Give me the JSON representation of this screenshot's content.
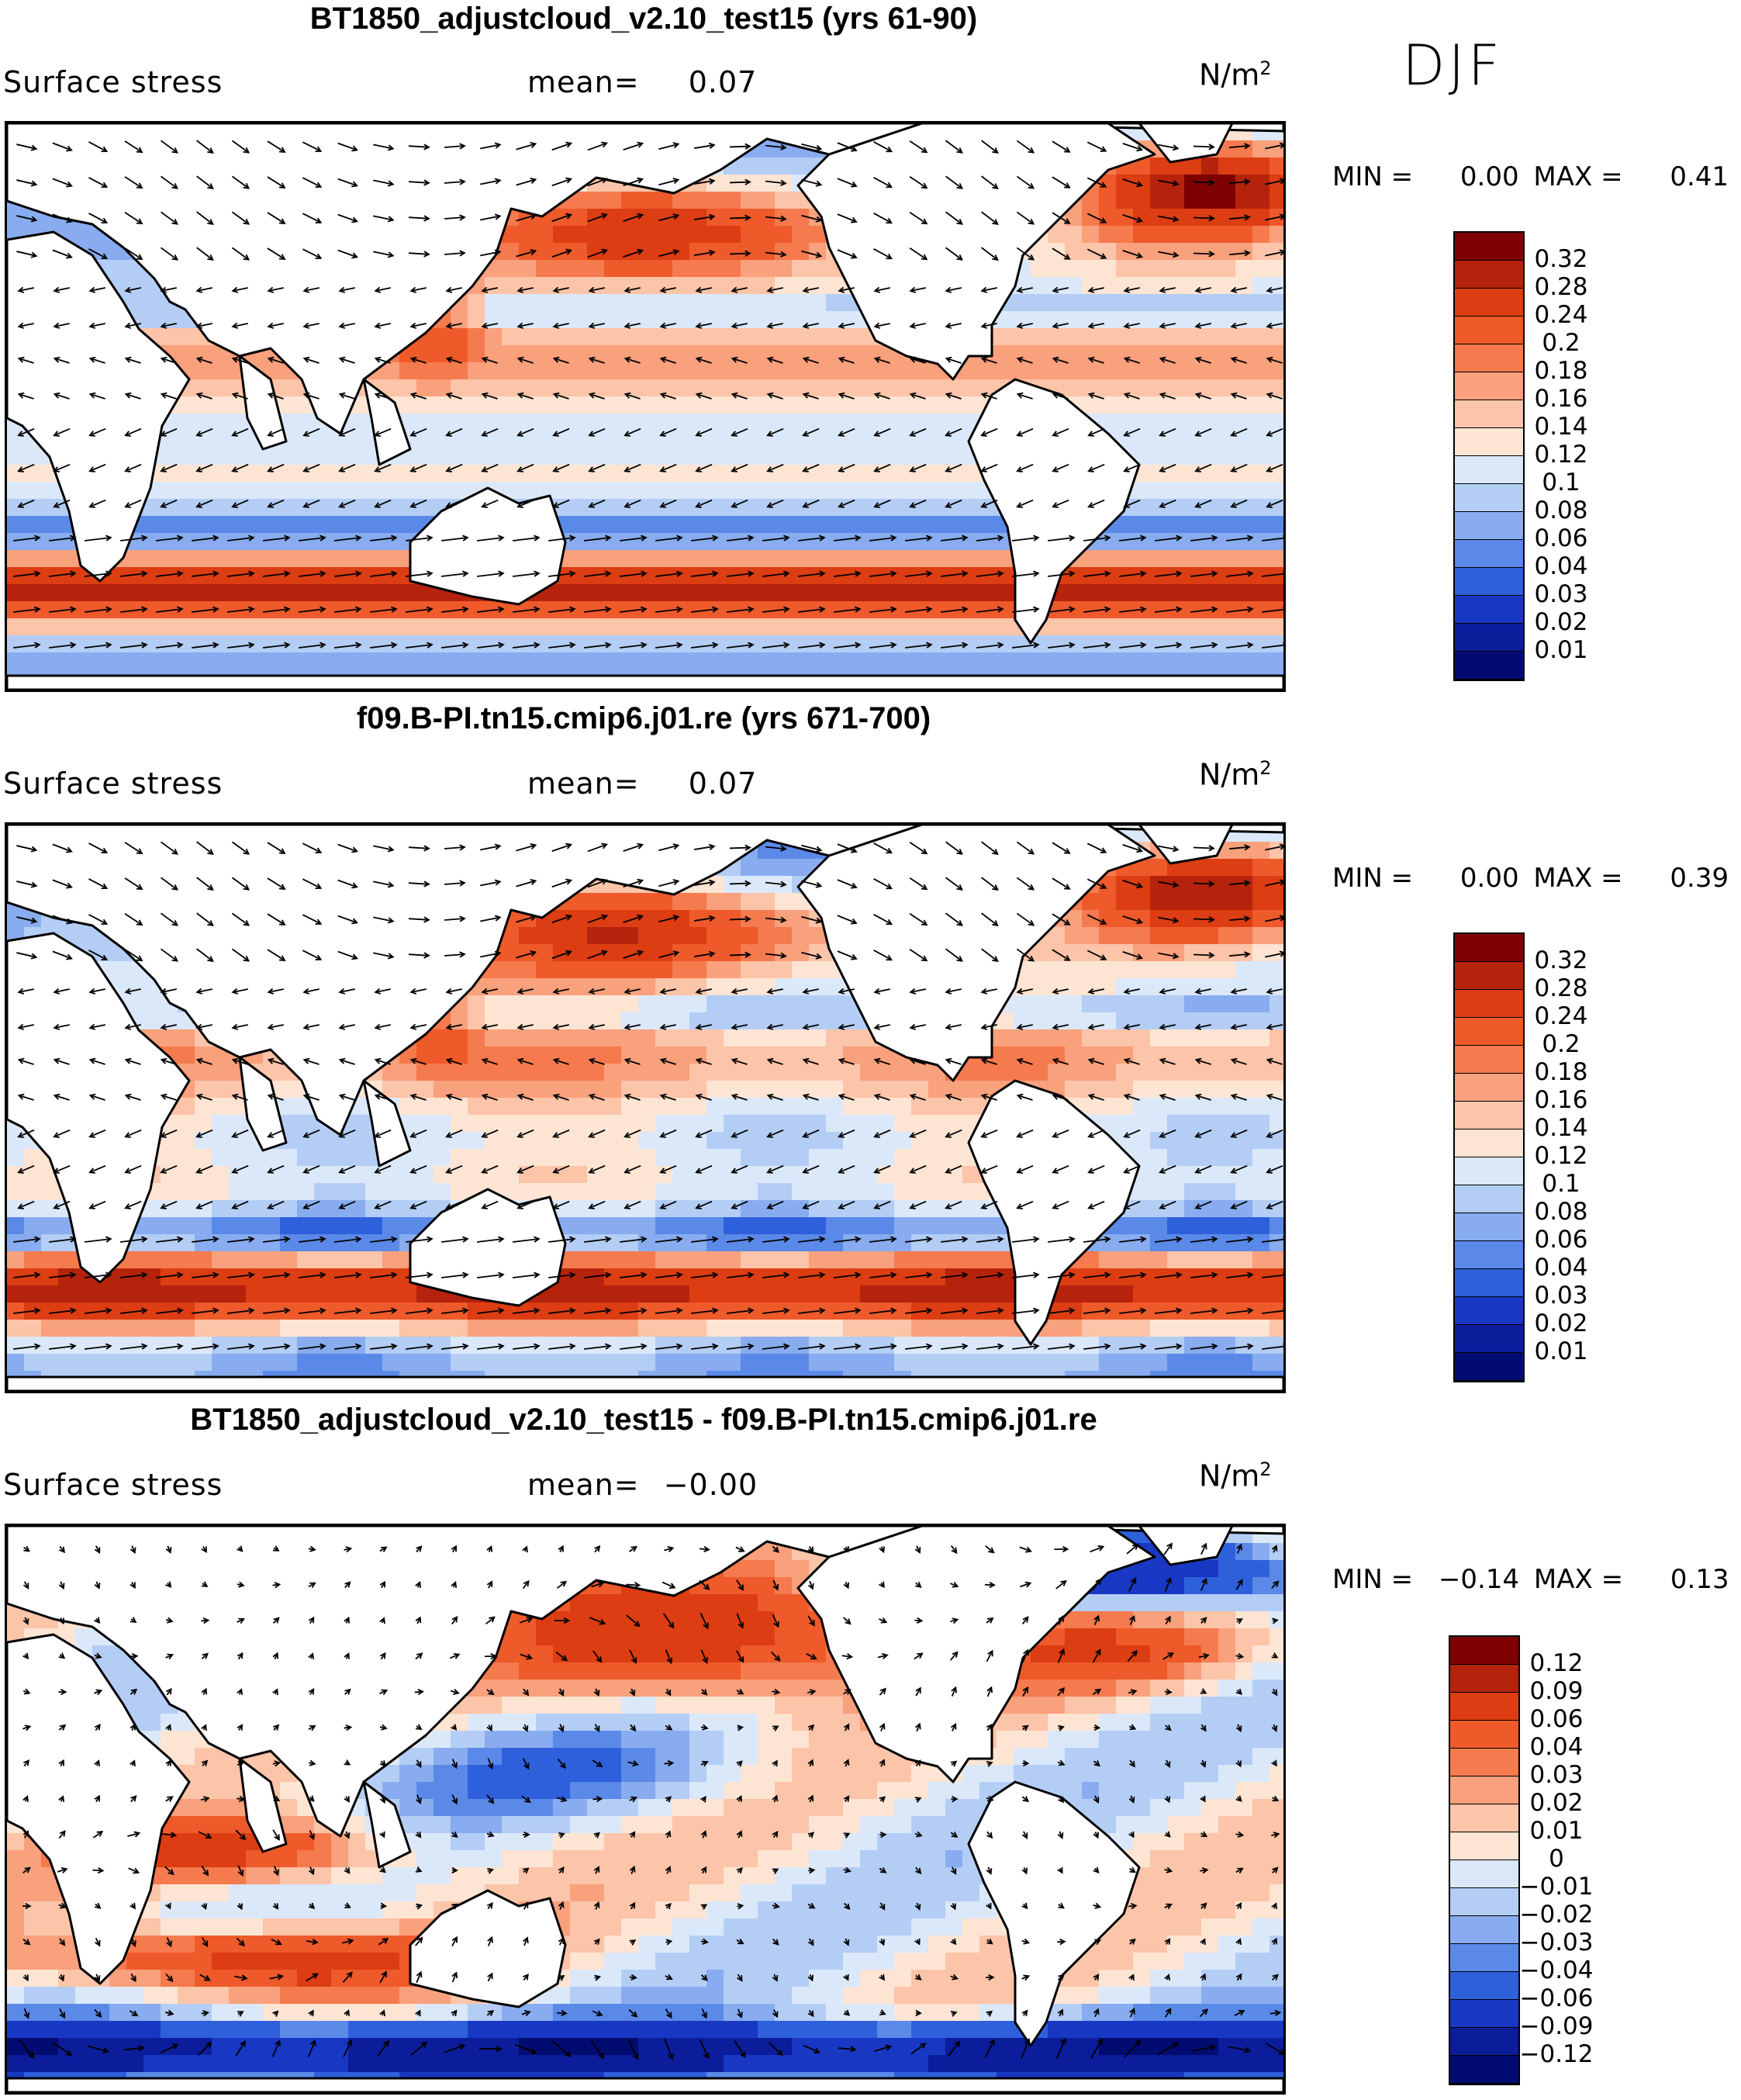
{
  "season": "DJF",
  "panels": [
    {
      "id": "top",
      "title": "BT1850_adjustcloud_v2.10_test15 (yrs 61-90)",
      "variable_label": "Surface stress",
      "mean_label": "mean=",
      "mean_value": "0.07",
      "units_base": "N/m",
      "units_exp": "2",
      "min_label": "MIN =",
      "min_value": "0.00",
      "max_label": "MAX =",
      "max_value": "0.41",
      "colorbar_labels": [
        "0.32",
        "0.28",
        "0.24",
        "0.2",
        "0.18",
        "0.16",
        "0.14",
        "0.12",
        "0.1",
        "0.08",
        "0.06",
        "0.04",
        "0.03",
        "0.02",
        "0.01"
      ],
      "kind": "field"
    },
    {
      "id": "middle",
      "title": "f09.B-PI.tn15.cmip6.j01.re (yrs 671-700)",
      "variable_label": "Surface stress",
      "mean_label": "mean=",
      "mean_value": "0.07",
      "units_base": "N/m",
      "units_exp": "2",
      "min_label": "MIN =",
      "min_value": "0.00",
      "max_label": "MAX =",
      "max_value": "0.39",
      "colorbar_labels": [
        "0.32",
        "0.28",
        "0.24",
        "0.2",
        "0.18",
        "0.16",
        "0.14",
        "0.12",
        "0.1",
        "0.08",
        "0.06",
        "0.04",
        "0.03",
        "0.02",
        "0.01"
      ],
      "kind": "field"
    },
    {
      "id": "bottom",
      "title": "BT1850_adjustcloud_v2.10_test15 - f09.B-PI.tn15.cmip6.j01.re",
      "variable_label": "Surface stress",
      "mean_label": "mean=",
      "mean_value": "−0.00",
      "units_base": "N/m",
      "units_exp": "2",
      "min_label": "MIN =",
      "min_value": "−0.14",
      "max_label": "MAX =",
      "max_value": "0.13",
      "colorbar_labels": [
        "0.12",
        "0.09",
        "0.06",
        "0.04",
        "0.03",
        "0.02",
        "0.01",
        "0",
        "−0.01",
        "−0.02",
        "−0.03",
        "−0.04",
        "−0.06",
        "−0.09",
        "−0.12"
      ],
      "kind": "diff"
    }
  ],
  "colors": {
    "field_scale": [
      "#7f0000",
      "#b5230c",
      "#dc3d12",
      "#ee5a2a",
      "#f57a4e",
      "#f9a07c",
      "#fcc4a8",
      "#fde4d3",
      "#dbe8fa",
      "#b3cdf5",
      "#88acef",
      "#5b89e8",
      "#2f60dc",
      "#1838c4",
      "#0b1d9a",
      "#020c70"
    ],
    "diff_scale": [
      "#7f0000",
      "#b5230c",
      "#dc3d12",
      "#ee5a2a",
      "#f57a4e",
      "#f9a07c",
      "#fcc4a8",
      "#fde4d3",
      "#dbe8fa",
      "#b3cdf5",
      "#88acef",
      "#5b89e8",
      "#2f60dc",
      "#1838c4",
      "#0b1d9a",
      "#020c70"
    ],
    "land": "#ffffff"
  },
  "icons": {
    "map": "world-map-icon",
    "arrows": "wind-stress-vector-icon"
  }
}
